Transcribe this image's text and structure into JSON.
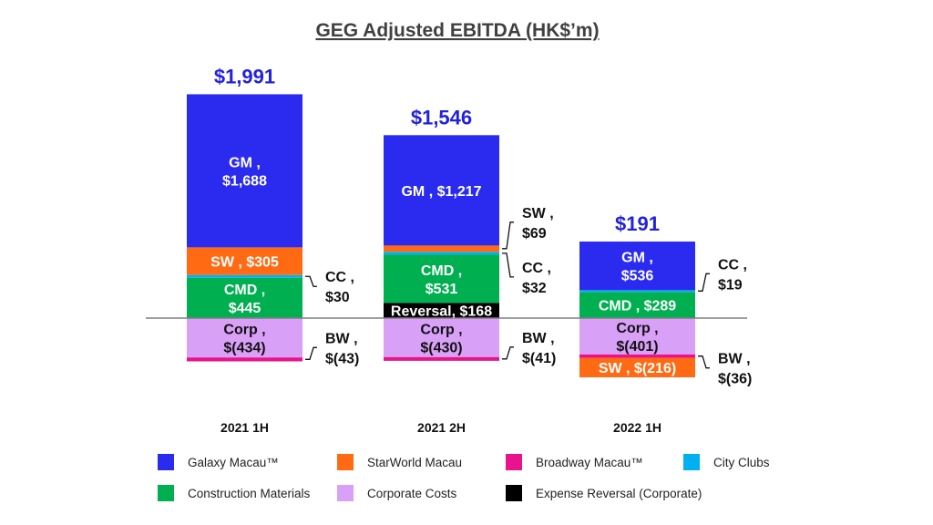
{
  "chart_data": {
    "type": "bar",
    "stacked": true,
    "title": "GEG Adjusted EBITDA (HK$’m)",
    "categories": [
      "2021 1H",
      "2021 2H",
      "2022 1H"
    ],
    "totals": [
      "$1,991",
      "$1,546",
      "$191"
    ],
    "colors": {
      "Galaxy Macau™": "#2b2bf0",
      "StarWorld Macau": "#ff6a13",
      "Broadway Macau™": "#e8148c",
      "City Clubs": "#00b0f0",
      "Construction Materials": "#00b050",
      "Corporate Costs": "#d9a0f7",
      "Expense Reversal (Corporate)": "#000000"
    },
    "bars": [
      {
        "category": "2021 1H",
        "segments": [
          {
            "series": "Construction Materials",
            "value": 445,
            "label": [
              "CMD ,",
              "$445"
            ],
            "text_color": "#ffffff"
          },
          {
            "series": "City Clubs",
            "value": 30,
            "callout": [
              "CC ,",
              "$30"
            ]
          },
          {
            "series": "StarWorld Macau",
            "value": 305,
            "label": [
              "SW ,  $305"
            ],
            "text_color": "#ffffff"
          },
          {
            "series": "Galaxy Macau™",
            "value": 1688,
            "label": [
              "GM ,",
              "$1,688"
            ],
            "text_color": "#ffffff"
          },
          {
            "series": "Corporate Costs",
            "value": -434,
            "label": [
              "Corp ,",
              "$(434)"
            ],
            "text_color": "#111111"
          },
          {
            "series": "Broadway Macau™",
            "value": -43,
            "callout": [
              "BW ,",
              "$(43)"
            ]
          }
        ]
      },
      {
        "category": "2021 2H",
        "segments": [
          {
            "series": "Expense Reversal (Corporate)",
            "value": 168,
            "label": [
              "Reversal, $168"
            ],
            "text_color": "#ffffff"
          },
          {
            "series": "Construction Materials",
            "value": 531,
            "label": [
              "CMD ,",
              "$531"
            ],
            "text_color": "#ffffff"
          },
          {
            "series": "City Clubs",
            "value": 32,
            "callout": [
              "CC ,",
              "$32"
            ]
          },
          {
            "series": "StarWorld Macau",
            "value": 69,
            "callout": [
              "SW ,",
              "$69"
            ]
          },
          {
            "series": "Galaxy Macau™",
            "value": 1217,
            "label": [
              "GM ,  $1,217"
            ],
            "text_color": "#ffffff"
          },
          {
            "series": "Corporate Costs",
            "value": -430,
            "label": [
              "Corp ,",
              "$(430)"
            ],
            "text_color": "#111111"
          },
          {
            "series": "Broadway Macau™",
            "value": -41,
            "callout": [
              "BW ,",
              "$(41)"
            ]
          }
        ]
      },
      {
        "category": "2022 1H",
        "segments": [
          {
            "series": "Construction Materials",
            "value": 289,
            "label": [
              "CMD , $289"
            ],
            "text_color": "#ffffff"
          },
          {
            "series": "City Clubs",
            "value": 19,
            "callout": [
              "CC ,",
              "$19"
            ]
          },
          {
            "series": "Galaxy Macau™",
            "value": 536,
            "label": [
              "GM ,",
              "$536"
            ],
            "text_color": "#ffffff"
          },
          {
            "series": "Corporate Costs",
            "value": -401,
            "label": [
              "Corp ,",
              "$(401)"
            ],
            "text_color": "#111111"
          },
          {
            "series": "Broadway Macau™",
            "value": -36,
            "callout": [
              "BW ,",
              "$(36)"
            ]
          },
          {
            "series": "StarWorld Macau",
            "value": -216,
            "label": [
              "SW ,  $(216)"
            ],
            "text_color": "#ffffff"
          }
        ]
      }
    ],
    "legend": [
      "Galaxy Macau™",
      "StarWorld Macau",
      "Broadway Macau™",
      "City Clubs",
      "Construction Materials",
      "Corporate Costs",
      "Expense Reversal (Corporate)"
    ],
    "legend_placement": "bottom",
    "grid": false,
    "axis_line_color": "#7f7f7f"
  }
}
